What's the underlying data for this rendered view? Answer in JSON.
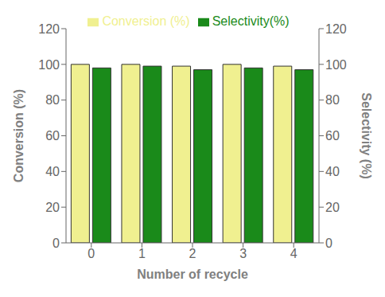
{
  "chart_data": {
    "type": "bar",
    "categories": [
      0,
      1,
      2,
      3,
      4
    ],
    "series": [
      {
        "name": "Conversion (%)",
        "color": "#F0F090",
        "values": [
          100,
          100,
          99,
          100,
          99
        ]
      },
      {
        "name": "Selectivity(%)",
        "color": "#1a8a1a",
        "values": [
          98,
          99,
          97,
          98,
          97
        ]
      }
    ],
    "xlabel": "Number of recycle",
    "ylabel": "Conversion (%)",
    "y2label": "Selectivity (%)",
    "ylim": [
      0,
      120
    ],
    "yticks": [
      0,
      20,
      40,
      60,
      80,
      100,
      120
    ],
    "y2lim": [
      0,
      120
    ],
    "y2ticks": [
      0,
      20,
      40,
      60,
      80,
      100,
      120
    ],
    "legend": "top",
    "grid": false
  }
}
